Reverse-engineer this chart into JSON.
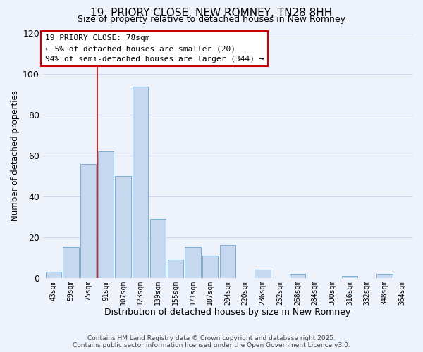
{
  "title": "19, PRIORY CLOSE, NEW ROMNEY, TN28 8HH",
  "subtitle": "Size of property relative to detached houses in New Romney",
  "xlabel": "Distribution of detached houses by size in New Romney",
  "ylabel": "Number of detached properties",
  "bin_labels": [
    "43sqm",
    "59sqm",
    "75sqm",
    "91sqm",
    "107sqm",
    "123sqm",
    "139sqm",
    "155sqm",
    "171sqm",
    "187sqm",
    "204sqm",
    "220sqm",
    "236sqm",
    "252sqm",
    "268sqm",
    "284sqm",
    "300sqm",
    "316sqm",
    "332sqm",
    "348sqm",
    "364sqm"
  ],
  "bar_values": [
    3,
    15,
    56,
    62,
    50,
    94,
    29,
    9,
    15,
    11,
    16,
    0,
    4,
    0,
    2,
    0,
    0,
    1,
    0,
    2,
    0
  ],
  "bar_color": "#c5d8f0",
  "bar_edge_color": "#7bafd4",
  "ylim": [
    0,
    120
  ],
  "yticks": [
    0,
    20,
    40,
    60,
    80,
    100,
    120
  ],
  "vline_x_index": 2,
  "vline_color": "#cc0000",
  "annotation_title": "19 PRIORY CLOSE: 78sqm",
  "annotation_line1": "← 5% of detached houses are smaller (20)",
  "annotation_line2": "94% of semi-detached houses are larger (344) →",
  "annotation_box_color": "#ffffff",
  "annotation_box_edge": "#cc0000",
  "footer1": "Contains HM Land Registry data © Crown copyright and database right 2025.",
  "footer2": "Contains public sector information licensed under the Open Government Licence v3.0.",
  "background_color": "#eef2fb",
  "grid_color": "#d0d8ee",
  "title_fontsize": 11,
  "subtitle_fontsize": 9
}
